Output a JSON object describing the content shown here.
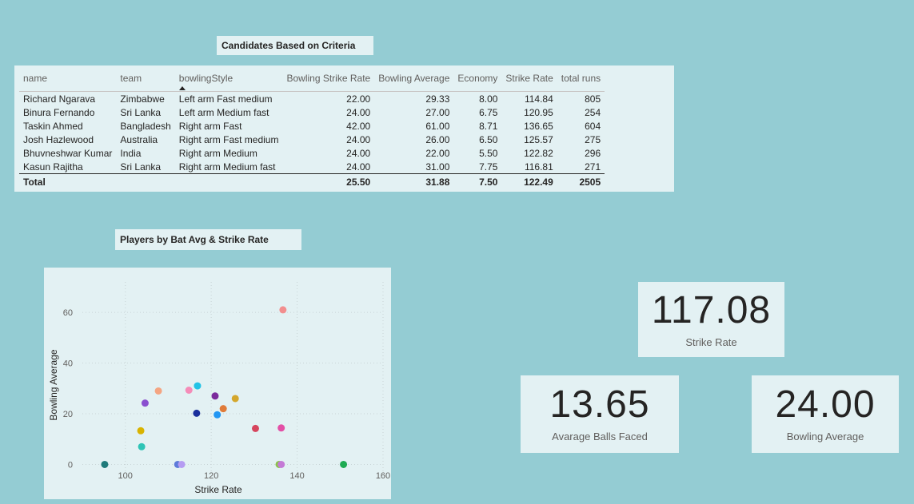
{
  "table_title": "Candidates Based on Criteria",
  "table": {
    "columns": [
      {
        "label": "name",
        "align": "left"
      },
      {
        "label": "team",
        "align": "left"
      },
      {
        "label": "bowlingStyle",
        "align": "left",
        "sorted": true
      },
      {
        "label": "Bowling Strike Rate",
        "align": "right"
      },
      {
        "label": "Bowling Average",
        "align": "right"
      },
      {
        "label": "Economy",
        "align": "right"
      },
      {
        "label": "Strike Rate",
        "align": "right"
      },
      {
        "label": "total runs",
        "align": "right"
      }
    ],
    "rows": [
      [
        "Richard Ngarava",
        "Zimbabwe",
        "Left arm Fast medium",
        "22.00",
        "29.33",
        "8.00",
        "114.84",
        "805"
      ],
      [
        "Binura Fernando",
        "Sri Lanka",
        "Left arm Medium fast",
        "24.00",
        "27.00",
        "6.75",
        "120.95",
        "254"
      ],
      [
        "Taskin Ahmed",
        "Bangladesh",
        "Right arm Fast",
        "42.00",
        "61.00",
        "8.71",
        "136.65",
        "604"
      ],
      [
        "Josh Hazlewood",
        "Australia",
        "Right arm Fast medium",
        "24.00",
        "26.00",
        "6.50",
        "125.57",
        "275"
      ],
      [
        "Bhuvneshwar Kumar",
        "India",
        "Right arm Medium",
        "24.00",
        "22.00",
        "5.50",
        "122.82",
        "296"
      ],
      [
        "Kasun Rajitha",
        "Sri Lanka",
        "Right arm Medium fast",
        "24.00",
        "31.00",
        "7.75",
        "116.81",
        "271"
      ]
    ],
    "total": [
      "Total",
      "",
      "",
      "25.50",
      "31.88",
      "7.50",
      "122.49",
      "2505"
    ]
  },
  "scatter_title": "Players by Bat Avg & Strike Rate",
  "chart_data": {
    "type": "scatter",
    "xlabel": "Strike Rate",
    "ylabel": "Bowling Average",
    "xlim": [
      90,
      160
    ],
    "ylim": [
      -3,
      72
    ],
    "xticks": [
      100,
      120,
      140,
      160
    ],
    "yticks": [
      0,
      20,
      40,
      60
    ],
    "grid": true,
    "points": [
      {
        "x": 95.2,
        "y": 0,
        "color": "#1f7a7a"
      },
      {
        "x": 103.6,
        "y": 13.3,
        "color": "#d9b300"
      },
      {
        "x": 103.8,
        "y": 7,
        "color": "#2ec4b6"
      },
      {
        "x": 104.6,
        "y": 24.2,
        "color": "#8a4fcf"
      },
      {
        "x": 107.7,
        "y": 29,
        "color": "#f4a582"
      },
      {
        "x": 112.2,
        "y": 0,
        "color": "#5d7bd9"
      },
      {
        "x": 113.1,
        "y": 0,
        "color": "#b59cf2"
      },
      {
        "x": 114.8,
        "y": 29.3,
        "color": "#f58cb8"
      },
      {
        "x": 116.8,
        "y": 31,
        "color": "#22c3e6"
      },
      {
        "x": 116.6,
        "y": 20.2,
        "color": "#1a2f9c"
      },
      {
        "x": 120.9,
        "y": 27,
        "color": "#7b2b9c"
      },
      {
        "x": 121.4,
        "y": 19.6,
        "color": "#2196f3"
      },
      {
        "x": 122.8,
        "y": 22,
        "color": "#e07b39"
      },
      {
        "x": 125.6,
        "y": 26,
        "color": "#d4a72c"
      },
      {
        "x": 130.3,
        "y": 14.2,
        "color": "#d6455d"
      },
      {
        "x": 135.8,
        "y": 0,
        "color": "#8bc34a"
      },
      {
        "x": 136.3,
        "y": 0,
        "color": "#c47ad6"
      },
      {
        "x": 136.3,
        "y": 14.4,
        "color": "#e34fa6"
      },
      {
        "x": 136.7,
        "y": 61,
        "color": "#f28e8e"
      },
      {
        "x": 150.8,
        "y": 0,
        "color": "#1eaa52"
      }
    ]
  },
  "cards": {
    "strike_rate": {
      "value": "117.08",
      "label": "Strike Rate"
    },
    "balls_faced": {
      "value": "13.65",
      "label": "Avarage Balls Faced"
    },
    "bowling_average": {
      "value": "24.00",
      "label": "Bowling Average"
    }
  }
}
